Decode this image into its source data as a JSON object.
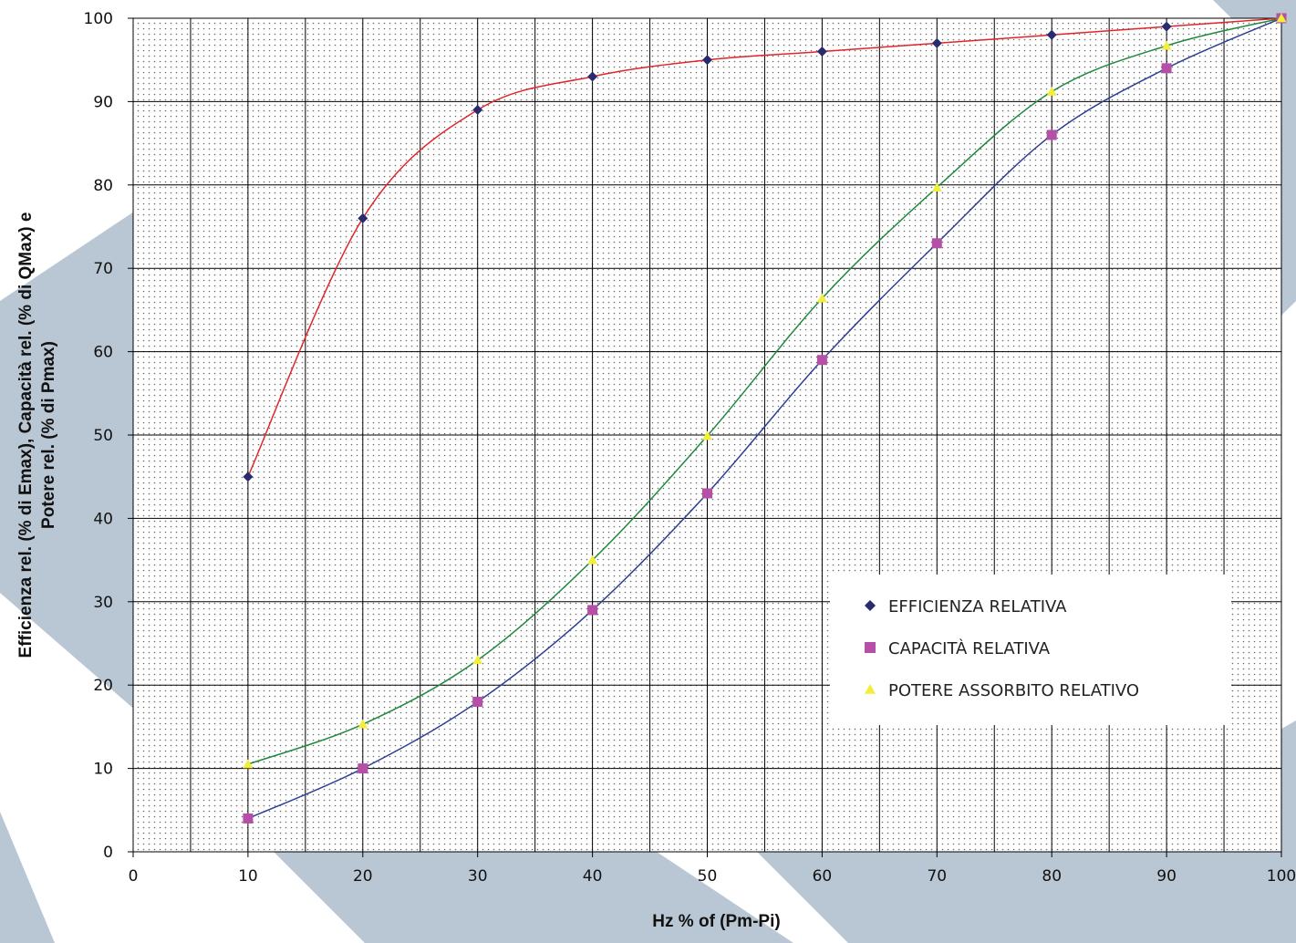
{
  "colors": {
    "background_shape": "#b9c6d3",
    "plot_bg": "#ffffff",
    "dot": "#6b6b6b",
    "grid": "#000000"
  },
  "chart_data": {
    "type": "scatter",
    "title": "",
    "xlabel": "Hz  % of (Pm-Pi)",
    "ylabel_lines": [
      "Efficienza rel. (% di Emax), Capacità rel. (% di QMax) e",
      "Potere rel. (% di Pmax)"
    ],
    "xlim": [
      0,
      100
    ],
    "ylim": [
      0,
      100
    ],
    "x_ticks": [
      0,
      10,
      20,
      30,
      40,
      50,
      60,
      70,
      80,
      90,
      100
    ],
    "y_ticks": [
      0,
      10,
      20,
      30,
      40,
      50,
      60,
      70,
      80,
      90,
      100
    ],
    "grid": true,
    "legend_position": "right",
    "series": [
      {
        "name": "EFFICIENZA RELATIVA",
        "marker": "diamond",
        "marker_color": "#2a2a6e",
        "line_color": "#e0262b",
        "x": [
          10,
          20,
          30,
          40,
          50,
          60,
          70,
          80,
          90,
          100
        ],
        "y": [
          45,
          76,
          89,
          93,
          95,
          96,
          97,
          98,
          99,
          100
        ]
      },
      {
        "name": "CAPACITÀ RELATIVA",
        "marker": "square",
        "marker_color": "#b54fa7",
        "line_color": "#2e3f94",
        "x": [
          10,
          20,
          30,
          40,
          50,
          60,
          70,
          80,
          90,
          100
        ],
        "y": [
          4,
          10,
          18,
          29,
          43,
          59,
          73,
          86,
          94,
          100
        ]
      },
      {
        "name": "POTERE ASSORBITO RELATIVO",
        "marker": "triangle",
        "marker_color": "#f2ee3a",
        "line_color": "#1f8a3c",
        "x": [
          10,
          20,
          30,
          40,
          50,
          60,
          70,
          80,
          90,
          100
        ],
        "y": [
          10.5,
          15.3,
          23,
          35,
          49.9,
          66.4,
          79.7,
          91.2,
          96.7,
          100
        ]
      }
    ]
  }
}
